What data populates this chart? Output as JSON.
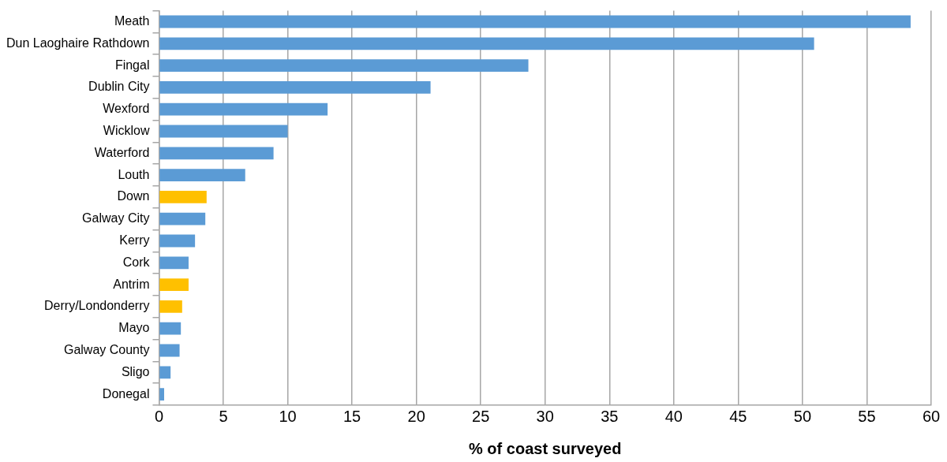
{
  "chart_data": {
    "type": "bar",
    "orientation": "horizontal",
    "xlabel": "% of coast surveyed",
    "categories": [
      "Meath",
      "Dun Laoghaire Rathdown",
      "Fingal",
      "Dublin City",
      "Wexford",
      "Wicklow",
      "Waterford",
      "Louth",
      "Down",
      "Galway City",
      "Kerry",
      "Cork",
      "Antrim",
      "Derry/Londonderry",
      "Mayo",
      "Galway County",
      "Sligo",
      "Donegal"
    ],
    "values": [
      58.4,
      50.9,
      28.7,
      21.1,
      13.1,
      10.0,
      8.9,
      6.7,
      3.7,
      3.6,
      2.8,
      2.3,
      2.3,
      1.8,
      1.7,
      1.6,
      0.9,
      0.4
    ],
    "colors": [
      "#5b9bd5",
      "#5b9bd5",
      "#5b9bd5",
      "#5b9bd5",
      "#5b9bd5",
      "#5b9bd5",
      "#5b9bd5",
      "#5b9bd5",
      "#ffc000",
      "#5b9bd5",
      "#5b9bd5",
      "#5b9bd5",
      "#ffc000",
      "#ffc000",
      "#5b9bd5",
      "#5b9bd5",
      "#5b9bd5",
      "#5b9bd5"
    ],
    "xlim": [
      0,
      60
    ],
    "xticks": [
      0,
      5,
      10,
      15,
      20,
      25,
      30,
      35,
      40,
      45,
      50,
      55,
      60
    ],
    "grid": "x",
    "legend": false
  }
}
